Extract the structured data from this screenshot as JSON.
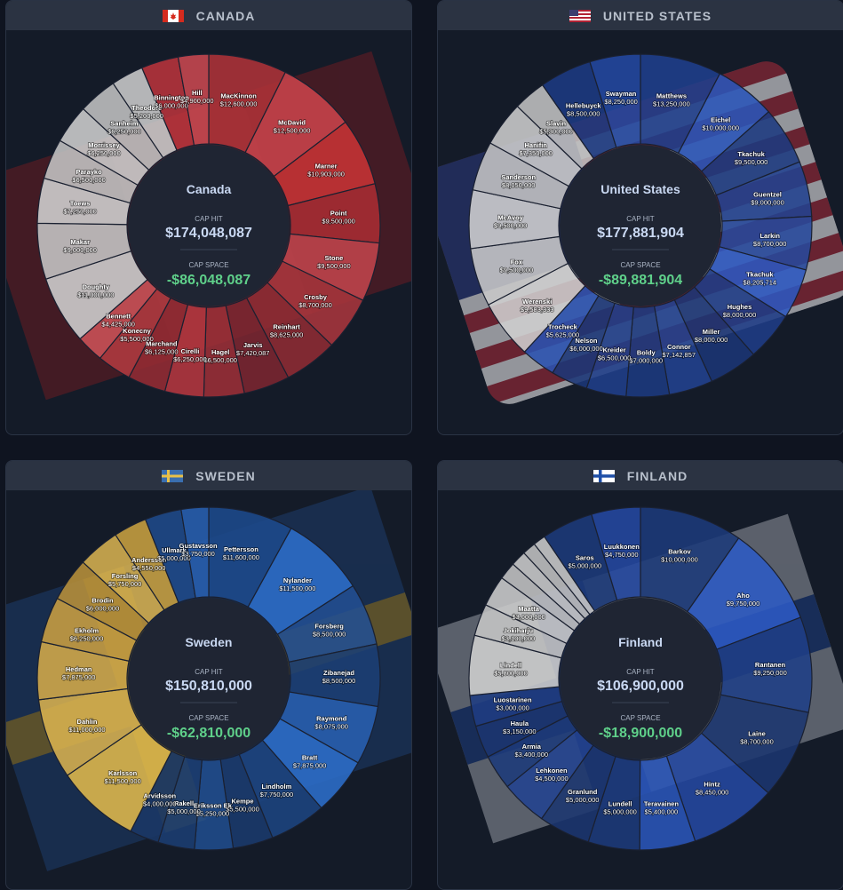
{
  "panels": [
    {
      "country": "CANADA",
      "flag": "ca-flag-icon",
      "chart_data": {
        "type": "pie",
        "center_title": "Canada",
        "cap_hit_label": "CAP HIT",
        "cap_hit": "$174,048,087",
        "cap_space_label": "CAP SPACE",
        "cap_space": "-$86,048,087",
        "slices": [
          {
            "name": "MacKinnon",
            "value": "$12,600,000",
            "amount": 12600000,
            "color": "#ae3238"
          },
          {
            "name": "McDavid",
            "value": "$12,500,000",
            "amount": 12500000,
            "color": "#c9434b"
          },
          {
            "name": "Marner",
            "value": "$10,903,000",
            "amount": 10903000,
            "color": "#c73336"
          },
          {
            "name": "Point",
            "value": "$9,500,000",
            "amount": 9500000,
            "color": "#a92c33"
          },
          {
            "name": "Stone",
            "value": "$9,500,000",
            "amount": 9500000,
            "color": "#c0444c"
          },
          {
            "name": "Crosby",
            "value": "$8,700,000",
            "amount": 8700000,
            "color": "#a9353c"
          },
          {
            "name": "Reinhart",
            "value": "$8,625,000",
            "amount": 8625000,
            "color": "#8f2b33"
          },
          {
            "name": "Jarvis",
            "value": "$7,420,087",
            "amount": 7420087,
            "color": "#7c2530"
          },
          {
            "name": "Hagel",
            "value": "$6,500,000",
            "amount": 6500000,
            "color": "#9c2f37"
          },
          {
            "name": "Cirelli",
            "value": "$6,250,000",
            "amount": 6250000,
            "color": "#b5373f"
          },
          {
            "name": "Marchand",
            "value": "$6,125,000",
            "amount": 6125000,
            "color": "#952b33"
          },
          {
            "name": "Konecny",
            "value": "$5,500,000",
            "amount": 5500000,
            "color": "#b03a40"
          },
          {
            "name": "Bennett",
            "value": "$4,425,000",
            "amount": 4425000,
            "color": "#cc5258"
          },
          {
            "name": "Doughty",
            "value": "$11,000,000",
            "amount": 11000000,
            "color": "#d0d0d0"
          },
          {
            "name": "Makar",
            "value": "$9,000,000",
            "amount": 9000000,
            "color": "#c6c6c6"
          },
          {
            "name": "Toews",
            "value": "$7,250,000",
            "amount": 7250000,
            "color": "#d2d2d2"
          },
          {
            "name": "Parayko",
            "value": "$6,500,000",
            "amount": 6500000,
            "color": "#c4c4c4"
          },
          {
            "name": "Morrissey",
            "value": "$6,250,000",
            "amount": 6250000,
            "color": "#cecece"
          },
          {
            "name": "Sanheim",
            "value": "$6,250,000",
            "amount": 6250000,
            "color": "#c2c2c2"
          },
          {
            "name": "Theodore",
            "value": "$5,200,000",
            "amount": 5200000,
            "color": "#cbcbcb"
          },
          {
            "name": "Binnington",
            "value": "$6,000,000",
            "amount": 6000000,
            "color": "#b8333b"
          },
          {
            "name": "Hill",
            "value": "$4,900,000",
            "amount": 4900000,
            "color": "#c94850"
          }
        ]
      }
    },
    {
      "country": "UNITED STATES",
      "flag": "us-flag-icon",
      "chart_data": {
        "type": "pie",
        "center_title": "United States",
        "cap_hit_label": "CAP HIT",
        "cap_hit": "$177,881,904",
        "cap_space_label": "CAP SPACE",
        "cap_space": "-$89,881,904",
        "slices": [
          {
            "name": "Matthews",
            "value": "$13,250,000",
            "amount": 13250000,
            "color": "#1f3f8c"
          },
          {
            "name": "Eichel",
            "value": "$10,000,000",
            "amount": 10000000,
            "color": "#2a55b8"
          },
          {
            "name": "Tkachuk",
            "value": "$9,500,000",
            "amount": 9500000,
            "color": "#1d3a80"
          },
          {
            "name": "Guentzel",
            "value": "$9,000,000",
            "amount": 9000000,
            "color": "#22428f"
          },
          {
            "name": "Larkin",
            "value": "$8,700,000",
            "amount": 8700000,
            "color": "#27499c"
          },
          {
            "name": "Tkachuk",
            "value": "$8,205,714",
            "amount": 8205714,
            "color": "#2c58c0"
          },
          {
            "name": "Hughes",
            "value": "$8,000,000",
            "amount": 8000000,
            "color": "#1f3c86"
          },
          {
            "name": "Miller",
            "value": "$8,000,000",
            "amount": 8000000,
            "color": "#1b3575"
          },
          {
            "name": "Connor",
            "value": "$7,142,857",
            "amount": 7142857,
            "color": "#22428f"
          },
          {
            "name": "Boldy",
            "value": "$7,000,000",
            "amount": 7000000,
            "color": "#1d3a80"
          },
          {
            "name": "Kreider",
            "value": "$6,500,000",
            "amount": 6500000,
            "color": "#203f8a"
          },
          {
            "name": "Nelson",
            "value": "$6,000,000",
            "amount": 6000000,
            "color": "#1b3778"
          },
          {
            "name": "Trocheck",
            "value": "$5,625,000",
            "amount": 5625000,
            "color": "#2a52b0"
          },
          {
            "name": "Werenski",
            "value": "$9,583,333",
            "amount": 9583333,
            "color": "#cfcfcf"
          },
          {
            "name": "Fox",
            "value": "$9,500,000",
            "amount": 9500000,
            "color": "#c8c8c8"
          },
          {
            "name": "McAvoy",
            "value": "$9,500,000",
            "amount": 9500000,
            "color": "#d0d0d0"
          },
          {
            "name": "Sanderson",
            "value": "$8,050,000",
            "amount": 8050000,
            "color": "#c4c4c4"
          },
          {
            "name": "Hanifin",
            "value": "$7,350,000",
            "amount": 7350000,
            "color": "#cdcdcd"
          },
          {
            "name": "Slavin",
            "value": "$5,300,000",
            "amount": 5300000,
            "color": "#c2c2c2"
          },
          {
            "name": "Hellebuyck",
            "value": "$8,500,000",
            "amount": 8500000,
            "color": "#1c3a82"
          },
          {
            "name": "Swayman",
            "value": "$8,250,000",
            "amount": 8250000,
            "color": "#2348a0"
          }
        ]
      }
    },
    {
      "country": "SWEDEN",
      "flag": "se-flag-icon",
      "chart_data": {
        "type": "pie",
        "center_title": "Sweden",
        "cap_hit_label": "CAP HIT",
        "cap_hit": "$150,810,000",
        "cap_space_label": "CAP SPACE",
        "cap_space": "-$62,810,000",
        "slices": [
          {
            "name": "Pettersson",
            "value": "$11,600,000",
            "amount": 11600000,
            "color": "#1d4a8c"
          },
          {
            "name": "Nylander",
            "value": "$11,500,000",
            "amount": 11500000,
            "color": "#2c6ecb"
          },
          {
            "name": "Forsberg",
            "value": "$8,500,000",
            "amount": 8500000,
            "color": "#224f92"
          },
          {
            "name": "Zibanejad",
            "value": "$8,500,000",
            "amount": 8500000,
            "color": "#1b3f74"
          },
          {
            "name": "Raymond",
            "value": "$8,075,000",
            "amount": 8075000,
            "color": "#2860b0"
          },
          {
            "name": "Bratt",
            "value": "$7,875,000",
            "amount": 7875000,
            "color": "#2c6ecb"
          },
          {
            "name": "Lindholm",
            "value": "$7,750,000",
            "amount": 7750000,
            "color": "#1d4480"
          },
          {
            "name": "Kempe",
            "value": "$5,500,000",
            "amount": 5500000,
            "color": "#1a3a6c"
          },
          {
            "name": "Eriksson Ek",
            "value": "$5,250,000",
            "amount": 5250000,
            "color": "#204c8c"
          },
          {
            "name": "Rakell",
            "value": "$5,000,000",
            "amount": 5000000,
            "color": "#1b3e72"
          },
          {
            "name": "Arvidsson",
            "value": "$4,000,000",
            "amount": 4000000,
            "color": "#1a3866"
          },
          {
            "name": "Karlsson",
            "value": "$11,500,000",
            "amount": 11500000,
            "color": "#e0b94c"
          },
          {
            "name": "Dahlin",
            "value": "$11,000,000",
            "amount": 11000000,
            "color": "#d8b250"
          },
          {
            "name": "Hedman",
            "value": "$7,875,000",
            "amount": 7875000,
            "color": "#d4ab4a"
          },
          {
            "name": "Ekholm",
            "value": "$6,250,000",
            "amount": 6250000,
            "color": "#c99f42"
          },
          {
            "name": "Brodin",
            "value": "$6,000,000",
            "amount": 6000000,
            "color": "#b8913a"
          },
          {
            "name": "Forsling",
            "value": "$5,750,000",
            "amount": 5750000,
            "color": "#d6b050"
          },
          {
            "name": "Andersson",
            "value": "$4,550,000",
            "amount": 4550000,
            "color": "#c8a040"
          },
          {
            "name": "Ullmark",
            "value": "$5,000,000",
            "amount": 5000000,
            "color": "#1f4a8a"
          },
          {
            "name": "Gustavsson",
            "value": "$3,750,000",
            "amount": 3750000,
            "color": "#2860b0"
          }
        ]
      }
    },
    {
      "country": "FINLAND",
      "flag": "fi-flag-icon",
      "chart_data": {
        "type": "pie",
        "center_title": "Finland",
        "cap_hit_label": "CAP HIT",
        "cap_hit": "$106,900,000",
        "cap_space_label": "CAP SPACE",
        "cap_space": "-$18,900,000",
        "slices": [
          {
            "name": "Barkov",
            "value": "$10,000,000",
            "amount": 10000000,
            "color": "#1d3a7a"
          },
          {
            "name": "Aho",
            "value": "$9,750,000",
            "amount": 9750000,
            "color": "#2c5ac4"
          },
          {
            "name": "Rantanen",
            "value": "$9,250,000",
            "amount": 9250000,
            "color": "#1f3f86"
          },
          {
            "name": "Laine",
            "value": "$8,700,000",
            "amount": 8700000,
            "color": "#1b3570"
          },
          {
            "name": "Hintz",
            "value": "$8,450,000",
            "amount": 8450000,
            "color": "#2448a0"
          },
          {
            "name": "Teravainen",
            "value": "$5,400,000",
            "amount": 5400000,
            "color": "#2a55b8"
          },
          {
            "name": "Lundell",
            "value": "$5,000,000",
            "amount": 5000000,
            "color": "#1d3a7a"
          },
          {
            "name": "Granlund",
            "value": "$5,000,000",
            "amount": 5000000,
            "color": "#1b3570"
          },
          {
            "name": "Lehkonen",
            "value": "$4,500,000",
            "amount": 4500000,
            "color": "#22428f"
          },
          {
            "name": "Armia",
            "value": "$3,400,000",
            "amount": 3400000,
            "color": "#1d3a7a"
          },
          {
            "name": "Haula",
            "value": "$3,150,000",
            "amount": 3150000,
            "color": "#1b3570"
          },
          {
            "name": "Luostarinen",
            "value": "$3,000,000",
            "amount": 3000000,
            "color": "#1f3c82"
          },
          {
            "name": "Lindell",
            "value": "$5,800,000",
            "amount": 5800000,
            "color": "#cfcfcf"
          },
          {
            "name": "Jokiharju",
            "value": "$3,100,000",
            "amount": 3100000,
            "color": "#c6c6c6"
          },
          {
            "name": "Maatta",
            "value": "$3,000,000",
            "amount": 3000000,
            "color": "#cdcdcd"
          },
          {
            "name": "",
            "value": "",
            "amount": 1700000,
            "color": "#c4c4c4"
          },
          {
            "name": "",
            "value": "",
            "amount": 1500000,
            "color": "#cccccc"
          },
          {
            "name": "",
            "value": "",
            "amount": 1300000,
            "color": "#c2c2c2"
          },
          {
            "name": "",
            "value": "",
            "amount": 1200000,
            "color": "#cbcbcb"
          },
          {
            "name": "Saros",
            "value": "$5,000,000",
            "amount": 5000000,
            "color": "#1d3a7a"
          },
          {
            "name": "Luukkonen",
            "value": "$4,750,000",
            "amount": 4750000,
            "color": "#2448a0"
          }
        ]
      }
    }
  ]
}
